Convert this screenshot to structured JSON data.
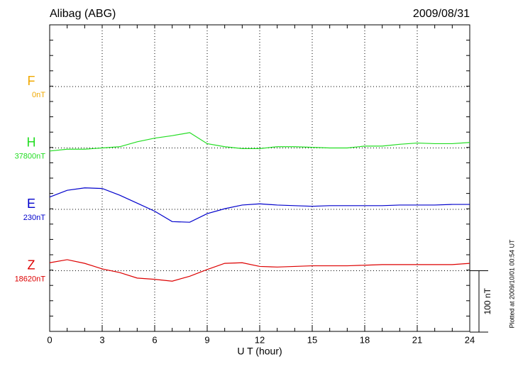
{
  "chart_data": {
    "type": "line",
    "title": "Alibag (ABG)",
    "date": "2009/08/31",
    "xlabel": "U T (hour)",
    "note": "Plotted at 2009/10/01 00:54 UT",
    "scale_bar": {
      "value": 100,
      "label": "100 nT"
    },
    "xlim": [
      0,
      24
    ],
    "xticks": [
      0,
      3,
      6,
      9,
      12,
      15,
      18,
      21,
      24
    ],
    "x": [
      0,
      1,
      2,
      3,
      4,
      5,
      6,
      7,
      8,
      9,
      10,
      11,
      12,
      13,
      14,
      15,
      16,
      17,
      18,
      19,
      20,
      21,
      22,
      23,
      24
    ],
    "grid": true,
    "series": [
      {
        "name": "F",
        "baseline": {
          "value": 0,
          "label": "0nT"
        },
        "color": "#f0a800",
        "values": [
          null,
          null,
          null,
          null,
          null,
          null,
          null,
          null,
          null,
          null,
          null,
          null,
          null,
          null,
          null,
          null,
          null,
          null,
          null,
          null,
          null,
          null,
          null,
          null,
          null
        ]
      },
      {
        "name": "H",
        "baseline": {
          "value": 37800,
          "label": "37800nT"
        },
        "color": "#22dd22",
        "values": [
          -5,
          -2,
          -2,
          0,
          2,
          10,
          16,
          20,
          25,
          7,
          2,
          -1,
          -1,
          2,
          2,
          1,
          0,
          0,
          3,
          3,
          6,
          8,
          7,
          7,
          9
        ]
      },
      {
        "name": "E",
        "baseline": {
          "value": 230,
          "label": "230nT"
        },
        "color": "#0000cc",
        "values": [
          20,
          31,
          35,
          34,
          23,
          10,
          -3,
          -20,
          -21,
          -7,
          1,
          7,
          9,
          7,
          6,
          5,
          6,
          6,
          6,
          6,
          7,
          7,
          7,
          8,
          8
        ]
      },
      {
        "name": "Z",
        "baseline": {
          "value": 18620,
          "label": "18620nT"
        },
        "color": "#dd0000",
        "values": [
          13,
          18,
          12,
          3,
          -3,
          -12,
          -14,
          -17,
          -9,
          2,
          12,
          13,
          7,
          6,
          7,
          8,
          8,
          8,
          9,
          10,
          10,
          10,
          10,
          10,
          12
        ]
      }
    ]
  }
}
